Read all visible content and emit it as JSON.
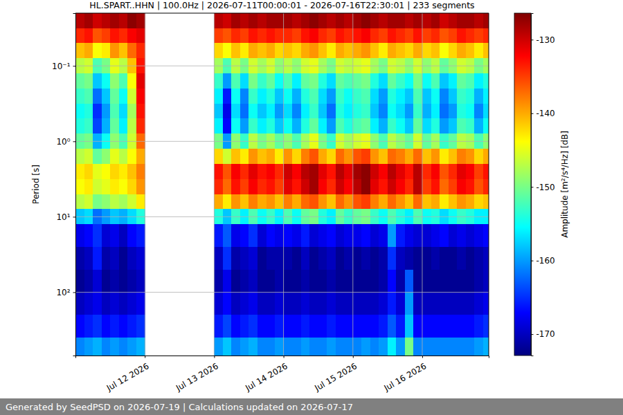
{
  "chart_data": {
    "type": "heatmap",
    "title": "HL.SPART..HHN | 100.0Hz | 2026-07-11T00:00:01 - 2026-07-16T22:30:01 | 233 segments",
    "ylabel": "Period [s]",
    "footer": "Generated by SeedPSD on 2026-07-19 | Calculations updated on 2026-07-17",
    "log": "y",
    "grid": true,
    "xlim": [
      "2026-07-11T00:00",
      "2026-07-16T23:00"
    ],
    "ylim": [
      0.02,
      690
    ],
    "xticks": [
      {
        "value": "2026-07-12T00:00",
        "label": "Jul 12 2026"
      },
      {
        "value": "2026-07-13T00:00",
        "label": "Jul 13 2026"
      },
      {
        "value": "2026-07-14T00:00",
        "label": "Jul 14 2026"
      },
      {
        "value": "2026-07-15T00:00",
        "label": "Jul 15 2026"
      },
      {
        "value": "2026-07-16T00:00",
        "label": "Jul 16 2026"
      }
    ],
    "yticks": [
      {
        "value": 0.1,
        "label": "10⁻¹"
      },
      {
        "value": 1,
        "label": "10⁰"
      },
      {
        "value": 10,
        "label": "10¹"
      },
      {
        "value": 100,
        "label": "10²"
      }
    ],
    "x": [
      "2026-07-11T00:00",
      "2026-07-11T03:00",
      "2026-07-11T06:00",
      "2026-07-11T09:00",
      "2026-07-11T12:00",
      "2026-07-11T15:00",
      "2026-07-11T18:00",
      "2026-07-11T21:00",
      "2026-07-12T00:00",
      "2026-07-12T03:00",
      "2026-07-12T06:00",
      "2026-07-12T09:00",
      "2026-07-12T12:00",
      "2026-07-12T15:00",
      "2026-07-12T18:00",
      "2026-07-12T21:00",
      "2026-07-13T00:00",
      "2026-07-13T03:00",
      "2026-07-13T06:00",
      "2026-07-13T09:00",
      "2026-07-13T12:00",
      "2026-07-13T15:00",
      "2026-07-13T18:00",
      "2026-07-13T21:00",
      "2026-07-14T00:00",
      "2026-07-14T03:00",
      "2026-07-14T06:00",
      "2026-07-14T09:00",
      "2026-07-14T12:00",
      "2026-07-14T15:00",
      "2026-07-14T18:00",
      "2026-07-14T21:00",
      "2026-07-15T00:00",
      "2026-07-15T03:00",
      "2026-07-15T06:00",
      "2026-07-15T09:00",
      "2026-07-15T12:00",
      "2026-07-15T15:00",
      "2026-07-15T18:00",
      "2026-07-15T21:00",
      "2026-07-16T00:00",
      "2026-07-16T03:00",
      "2026-07-16T06:00",
      "2026-07-16T09:00",
      "2026-07-16T12:00",
      "2026-07-16T15:00",
      "2026-07-16T18:00",
      "2026-07-16T21:00",
      "2026-07-17T00:00"
    ],
    "y": [
      0.02,
      0.0316,
      0.05,
      0.0794,
      0.126,
      0.2,
      0.316,
      0.5,
      0.794,
      1.26,
      2,
      3.16,
      5,
      7.94,
      12.6,
      25.1,
      50.1,
      100,
      200,
      398,
      690
    ],
    "values": [
      [
        -129,
        -128,
        -130,
        -129,
        -128,
        -129,
        -127,
        -128,
        null,
        null,
        null,
        null,
        null,
        null,
        null,
        null,
        -129,
        -130,
        -128,
        -129,
        -128,
        -129,
        -128,
        -128,
        -128,
        -129,
        -128,
        -127,
        -128,
        -129,
        -128,
        -129,
        -128,
        -127,
        -128,
        -129,
        -128,
        -128,
        -129,
        -128,
        -129,
        -128,
        -130,
        -129,
        -128,
        -128,
        -129,
        -128
      ],
      [
        -134,
        -133,
        -136,
        -135,
        -133,
        -134,
        -132,
        -131,
        null,
        null,
        null,
        null,
        null,
        null,
        null,
        null,
        -135,
        -136,
        -134,
        -135,
        -133,
        -134,
        -133,
        -134,
        -134,
        -135,
        -133,
        -132,
        -134,
        -135,
        -133,
        -134,
        -133,
        -132,
        -134,
        -135,
        -133,
        -134,
        -135,
        -133,
        -135,
        -134,
        -136,
        -135,
        -133,
        -134,
        -135,
        -134
      ],
      [
        -141,
        -140,
        -144,
        -143,
        -139,
        -141,
        -137,
        -134,
        null,
        null,
        null,
        null,
        null,
        null,
        null,
        null,
        -142,
        -144,
        -141,
        -143,
        -140,
        -141,
        -140,
        -142,
        -141,
        -142,
        -140,
        -139,
        -141,
        -143,
        -140,
        -141,
        -140,
        -139,
        -141,
        -143,
        -140,
        -141,
        -142,
        -140,
        -142,
        -141,
        -144,
        -142,
        -140,
        -141,
        -143,
        -141
      ],
      [
        -147,
        -146,
        -152,
        -150,
        -145,
        -147,
        -141,
        -133,
        null,
        null,
        null,
        null,
        null,
        null,
        null,
        null,
        -148,
        -152,
        -147,
        -150,
        -146,
        -148,
        -146,
        -149,
        -147,
        -149,
        -146,
        -145,
        -148,
        -150,
        -146,
        -147,
        -146,
        -145,
        -148,
        -150,
        -146,
        -147,
        -149,
        -146,
        -149,
        -147,
        -151,
        -149,
        -146,
        -147,
        -150,
        -148
      ],
      [
        -151,
        -150,
        -158,
        -155,
        -149,
        -152,
        -144,
        -131,
        null,
        null,
        null,
        null,
        null,
        null,
        null,
        null,
        -153,
        -160,
        -152,
        -157,
        -150,
        -153,
        -151,
        -155,
        -152,
        -156,
        -151,
        -150,
        -154,
        -157,
        -151,
        -152,
        -151,
        -150,
        -154,
        -157,
        -151,
        -153,
        -155,
        -150,
        -155,
        -152,
        -158,
        -156,
        -151,
        -152,
        -156,
        -154
      ],
      [
        -153,
        -152,
        -162,
        -158,
        -151,
        -155,
        -146,
        -132,
        null,
        null,
        null,
        null,
        null,
        null,
        null,
        null,
        -156,
        -166,
        -155,
        -161,
        -153,
        -156,
        -154,
        -158,
        -155,
        -159,
        -154,
        -152,
        -157,
        -160,
        -153,
        -155,
        -153,
        -152,
        -157,
        -160,
        -154,
        -156,
        -158,
        -152,
        -158,
        -155,
        -161,
        -158,
        -153,
        -154,
        -159,
        -156
      ],
      [
        -155,
        -154,
        -165,
        -160,
        -152,
        -157,
        -148,
        -133,
        null,
        null,
        null,
        null,
        null,
        null,
        null,
        null,
        -158,
        -168,
        -157,
        -162,
        -155,
        -158,
        -156,
        -160,
        -157,
        -161,
        -156,
        -153,
        -158,
        -162,
        -154,
        -156,
        -154,
        -153,
        -158,
        -161,
        -155,
        -157,
        -160,
        -153,
        -159,
        -156,
        -162,
        -160,
        -154,
        -155,
        -161,
        -157
      ],
      [
        -154,
        -153,
        -164,
        -159,
        -151,
        -156,
        -147,
        -134,
        null,
        null,
        null,
        null,
        null,
        null,
        null,
        null,
        -156,
        -167,
        -155,
        -160,
        -153,
        -156,
        -154,
        -158,
        -155,
        -159,
        -154,
        -151,
        -156,
        -160,
        -152,
        -154,
        -152,
        -151,
        -156,
        -159,
        -153,
        -155,
        -158,
        -151,
        -157,
        -154,
        -160,
        -158,
        -152,
        -153,
        -159,
        -155
      ],
      [
        -151,
        -150,
        -159,
        -155,
        -149,
        -152,
        -146,
        -137,
        null,
        null,
        null,
        null,
        null,
        null,
        null,
        null,
        -150,
        -160,
        -149,
        -153,
        -147,
        -150,
        -148,
        -151,
        -149,
        -152,
        -148,
        -145,
        -150,
        -153,
        -146,
        -148,
        -146,
        -145,
        -149,
        -152,
        -147,
        -149,
        -151,
        -146,
        -151,
        -148,
        -153,
        -151,
        -147,
        -148,
        -152,
        -149
      ],
      [
        -147,
        -146,
        -151,
        -149,
        -145,
        -147,
        -144,
        -140,
        null,
        null,
        null,
        null,
        null,
        null,
        null,
        null,
        -142,
        -146,
        -141,
        -143,
        -139,
        -141,
        -140,
        -143,
        -139,
        -142,
        -138,
        -136,
        -140,
        -142,
        -137,
        -139,
        -136,
        -135,
        -139,
        -141,
        -137,
        -138,
        -140,
        -137,
        -141,
        -139,
        -143,
        -141,
        -138,
        -139,
        -142,
        -140
      ],
      [
        -143,
        -142,
        -145,
        -144,
        -142,
        -143,
        -141,
        -138,
        null,
        null,
        null,
        null,
        null,
        null,
        null,
        null,
        -133,
        -136,
        -132,
        -134,
        -131,
        -133,
        -132,
        -134,
        -130,
        -132,
        -129,
        -128,
        -131,
        -133,
        -129,
        -131,
        -128,
        -127,
        -130,
        -132,
        -129,
        -131,
        -133,
        -129,
        -134,
        -132,
        -136,
        -134,
        -131,
        -132,
        -135,
        -133
      ],
      [
        -144,
        -143,
        -146,
        -145,
        -143,
        -144,
        -142,
        -139,
        null,
        null,
        null,
        null,
        null,
        null,
        null,
        null,
        -134,
        -137,
        -133,
        -135,
        -132,
        -134,
        -133,
        -135,
        -131,
        -133,
        -130,
        -128,
        -132,
        -134,
        -130,
        -132,
        -129,
        -127,
        -131,
        -133,
        -130,
        -132,
        -134,
        -129,
        -135,
        -133,
        -137,
        -135,
        -132,
        -133,
        -136,
        -134
      ],
      [
        -147,
        -146,
        -150,
        -149,
        -147,
        -148,
        -146,
        -143,
        null,
        null,
        null,
        null,
        null,
        null,
        null,
        null,
        -140,
        -143,
        -139,
        -141,
        -138,
        -140,
        -139,
        -141,
        -138,
        -140,
        -137,
        -136,
        -139,
        -141,
        -137,
        -139,
        -136,
        -135,
        -138,
        -140,
        -137,
        -139,
        -141,
        -137,
        -141,
        -140,
        -143,
        -141,
        -139,
        -140,
        -142,
        -141
      ],
      [
        -158,
        -157,
        -162,
        -160,
        -158,
        -159,
        -157,
        -154,
        null,
        null,
        null,
        null,
        null,
        null,
        null,
        null,
        -154,
        -158,
        -153,
        -156,
        -152,
        -155,
        -153,
        -156,
        -152,
        -155,
        -151,
        -150,
        -154,
        -156,
        -151,
        -153,
        -151,
        -150,
        -153,
        -155,
        -152,
        -154,
        -156,
        -152,
        -155,
        -154,
        -157,
        -155,
        -153,
        -154,
        -156,
        -156
      ],
      [
        -168,
        -167,
        -165,
        -169,
        -168,
        -170,
        -167,
        -166,
        null,
        null,
        null,
        null,
        null,
        null,
        null,
        null,
        -166,
        -163,
        -168,
        -167,
        -165,
        -169,
        -167,
        -168,
        -167,
        -168,
        -166,
        -169,
        -168,
        -167,
        -169,
        -168,
        -168,
        -167,
        -169,
        -168,
        -160,
        -166,
        -168,
        -169,
        -169,
        -168,
        -167,
        -169,
        -168,
        -169,
        -168,
        -167
      ],
      [
        -171,
        -170,
        -166,
        -171,
        -170,
        -172,
        -170,
        -169,
        null,
        null,
        null,
        null,
        null,
        null,
        null,
        null,
        -170,
        -165,
        -171,
        -170,
        -169,
        -172,
        -171,
        -171,
        -171,
        -172,
        -170,
        -172,
        -171,
        -170,
        -172,
        -171,
        -172,
        -171,
        -172,
        -171,
        -165,
        -170,
        -171,
        -172,
        -172,
        -171,
        -172,
        -172,
        -171,
        -172,
        -171,
        -170
      ],
      [
        -172,
        -171,
        -169,
        -172,
        -171,
        -172,
        -171,
        -170,
        null,
        null,
        null,
        null,
        null,
        null,
        null,
        null,
        -171,
        -168,
        -172,
        -171,
        -170,
        -172,
        -172,
        -171,
        -172,
        -172,
        -171,
        -172,
        -172,
        -171,
        -172,
        -172,
        -172,
        -172,
        -172,
        -171,
        -167,
        -171,
        -163,
        -172,
        -172,
        -172,
        -172,
        -172,
        -172,
        -172,
        -171,
        -170
      ],
      [
        -170,
        -169,
        -168,
        -170,
        -169,
        -170,
        -169,
        -168,
        null,
        null,
        null,
        null,
        null,
        null,
        null,
        null,
        -169,
        -167,
        -170,
        -169,
        -168,
        -170,
        -170,
        -169,
        -170,
        -170,
        -169,
        -170,
        -170,
        -169,
        -170,
        -170,
        -170,
        -170,
        -170,
        -169,
        -166,
        -169,
        -160,
        -170,
        -170,
        -170,
        -170,
        -170,
        -170,
        -170,
        -169,
        -168
      ],
      [
        -167,
        -166,
        -165,
        -167,
        -166,
        -167,
        -166,
        -165,
        null,
        null,
        null,
        null,
        null,
        null,
        null,
        null,
        -166,
        -164,
        -167,
        -166,
        -165,
        -167,
        -167,
        -166,
        -167,
        -167,
        -166,
        -167,
        -167,
        -166,
        -167,
        -167,
        -167,
        -167,
        -167,
        -166,
        -163,
        -166,
        -158,
        -167,
        -167,
        -167,
        -167,
        -167,
        -167,
        -167,
        -166,
        -165
      ],
      [
        -161,
        -160,
        -159,
        -161,
        -160,
        -161,
        -160,
        -159,
        null,
        null,
        null,
        null,
        null,
        null,
        null,
        null,
        -160,
        -158,
        -161,
        -160,
        -159,
        -161,
        -161,
        -160,
        -161,
        -161,
        -160,
        -161,
        -161,
        -160,
        -161,
        -161,
        -161,
        -160,
        -161,
        -160,
        -156,
        -160,
        -150,
        -161,
        -161,
        -161,
        -161,
        -161,
        -161,
        -161,
        -160,
        -159
      ]
    ],
    "colorbar": {
      "label": "Amplitude [m²/s⁴/Hz] [dB]",
      "range": [
        -172.9,
        -126.4
      ],
      "ticks": [
        -170,
        -160,
        -150,
        -140,
        -130
      ]
    }
  }
}
